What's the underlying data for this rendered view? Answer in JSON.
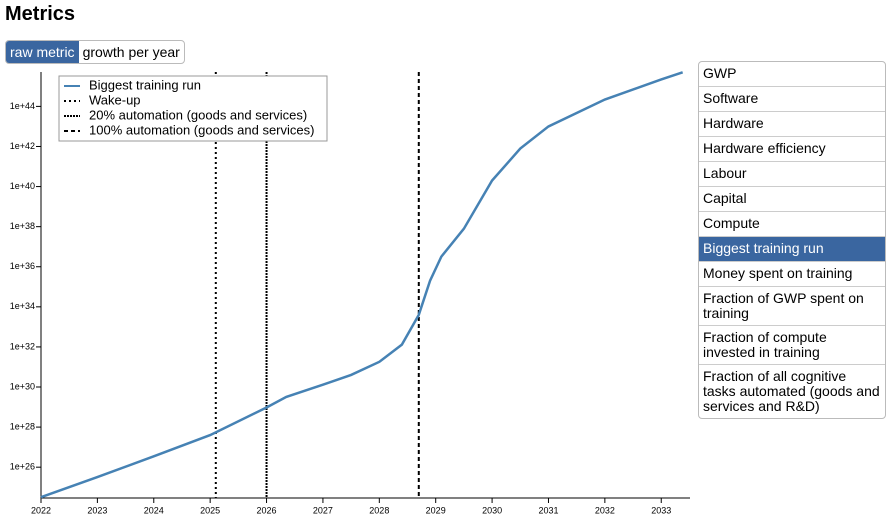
{
  "header": {
    "title": "Metrics"
  },
  "toggle": {
    "options": [
      "raw metric",
      "growth per year"
    ],
    "selected": 0
  },
  "chart_data": {
    "type": "line",
    "x": [
      2022.0,
      2023.0,
      2024.0,
      2025.0,
      2026.0,
      2026.35,
      2027.0,
      2027.5,
      2028.0,
      2028.4,
      2028.7,
      2028.9,
      2029.1,
      2029.5,
      2030.0,
      2030.5,
      2031.0,
      2032.0,
      2033.0,
      2033.38
    ],
    "series": [
      {
        "name": "Biggest training run",
        "color": "#4682b4",
        "values": [
          3.2e+24,
          3.2e+25,
          3.5e+26,
          4e+27,
          9.5e+28,
          3.2e+29,
          1.3e+30,
          4e+30,
          1.8e+31,
          1.3e+32,
          4e+33,
          2e+35,
          3.2e+36,
          7.9e+37,
          2e+40,
          7.9e+41,
          1e+43,
          2.2e+44,
          2.2e+45,
          5e+45
        ]
      }
    ],
    "markers": [
      {
        "name": "Wake-up",
        "x": 2025.1,
        "style": "dotted"
      },
      {
        "name": "20% automation (goods and services)",
        "x": 2026.0,
        "style": "dense"
      },
      {
        "name": "100% automation (goods and services)",
        "x": 2028.7,
        "style": "dashed"
      }
    ],
    "xlim": [
      2022,
      2033.51
    ],
    "xticks": [
      2022,
      2023,
      2024,
      2025,
      2026,
      2027,
      2028,
      2029,
      2030,
      2031,
      2032,
      2033
    ],
    "ylim": [
      2.9e+24,
      5.2e+45
    ],
    "log_y": true,
    "yticks": [
      {
        "value": 1e+26,
        "label": "1e+26"
      },
      {
        "value": 1e+28,
        "label": "1e+28"
      },
      {
        "value": 1e+30,
        "label": "1e+30"
      },
      {
        "value": 1e+32,
        "label": "1e+32"
      },
      {
        "value": 1e+34,
        "label": "1e+34"
      },
      {
        "value": 1e+36,
        "label": "1e+36"
      },
      {
        "value": 1e+38,
        "label": "1e+38"
      },
      {
        "value": 1e+40,
        "label": "1e+40"
      },
      {
        "value": 1e+42,
        "label": "1e+42"
      },
      {
        "value": 1e+44,
        "label": "1e+44"
      }
    ],
    "legend": "top-left"
  },
  "metrics_list": {
    "items": [
      "GWP",
      "Software",
      "Hardware",
      "Hardware efficiency",
      "Labour",
      "Capital",
      "Compute",
      "Biggest training run",
      "Money spent on training",
      "Fraction of GWP spent on training",
      "Fraction of compute invested in training",
      "Fraction of all cognitive tasks automated (goods and services and R&D)"
    ],
    "selected": 7
  }
}
